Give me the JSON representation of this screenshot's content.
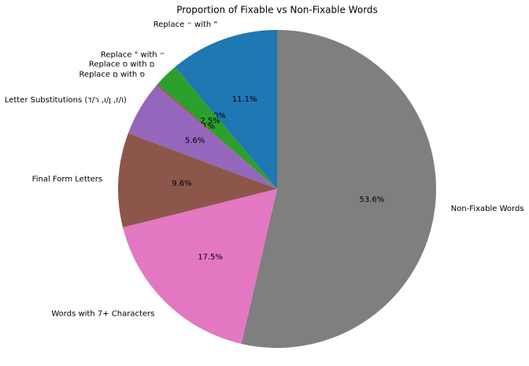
{
  "chart_data": {
    "type": "pie",
    "title": "Proportion of Fixable vs Non-Fixable Words",
    "categories": [
      "Replace ״ with \"",
      "Replace \" with ״",
      "Replace ס with ם",
      "Replace ם with ס",
      "Letter Substitutions (ו/ז, ן/ו, ר/ד)",
      "Final Form Letters",
      "Words with 7+ Characters",
      "Non-Fixable Words"
    ],
    "values": [
      11.1,
      0.0,
      2.5,
      0.1,
      5.6,
      9.6,
      17.5,
      53.6
    ],
    "value_labels": [
      "11.1%",
      "0.0%",
      "2.5%",
      "0.1%",
      "5.6%",
      "9.6%",
      "17.5%",
      "53.6%"
    ],
    "colors": [
      "#1f77b4",
      "#ff7f0e",
      "#2ca02c",
      "#d62728",
      "#9467bd",
      "#8c564b",
      "#e377c2",
      "#7f7f7f"
    ]
  }
}
